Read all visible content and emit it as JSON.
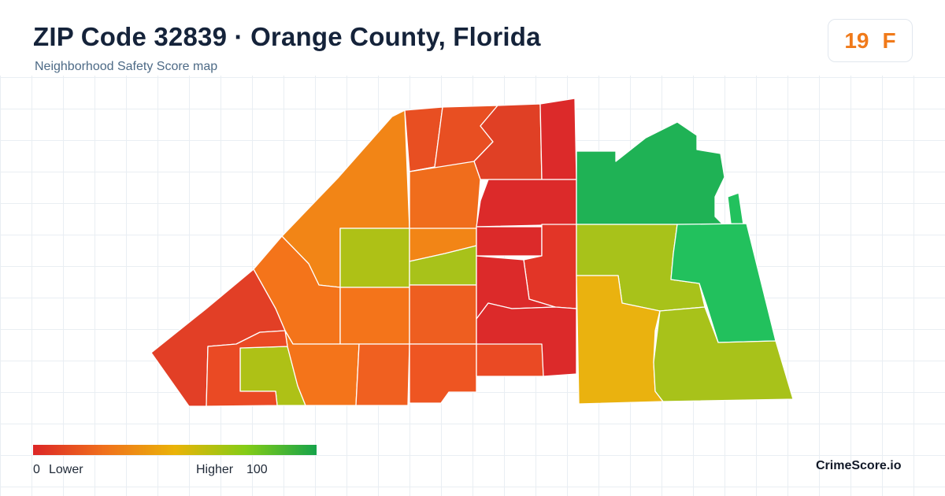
{
  "header": {
    "title": "ZIP Code 32839 · Orange County, Florida",
    "subtitle": "Neighborhood Safety Score map"
  },
  "score_badge": {
    "score": "19",
    "grade": "F"
  },
  "legend": {
    "min_value": "0",
    "min_label": "Lower",
    "max_label": "Higher",
    "max_value": "100",
    "colors": [
      "#dc2626",
      "#f0701c",
      "#eab308",
      "#84cc16",
      "#16a34a"
    ]
  },
  "brand": "CrimeScore.io",
  "map": {
    "regions": [
      {
        "id": "north-west-strip",
        "fill": "#f28516"
      },
      {
        "id": "north-upper-left",
        "fill": "#e84f22"
      },
      {
        "id": "north-upper-center",
        "fill": "#e84f22"
      },
      {
        "id": "north-upper-right",
        "fill": "#e04025"
      },
      {
        "id": "north-east-edge",
        "fill": "#dc2a2a"
      },
      {
        "id": "upper-center-left",
        "fill": "#f06d1c"
      },
      {
        "id": "center-tall-red",
        "fill": "#dc2a2a"
      },
      {
        "id": "north-east-green",
        "fill": "#1fb255"
      },
      {
        "id": "east-sliver",
        "fill": "#22c15d"
      },
      {
        "id": "center-lime-west",
        "fill": "#aec116"
      },
      {
        "id": "center-orange-small",
        "fill": "#f28516"
      },
      {
        "id": "center-lime-east",
        "fill": "#a8c21a"
      },
      {
        "id": "center-red-upper",
        "fill": "#dc2a2a"
      },
      {
        "id": "center-red-right",
        "fill": "#e23527"
      },
      {
        "id": "east-lime",
        "fill": "#a8c21a"
      },
      {
        "id": "east-green",
        "fill": "#22c15d"
      },
      {
        "id": "west-orange-1",
        "fill": "#f4741a"
      },
      {
        "id": "west-red-edge",
        "fill": "#e23f26"
      },
      {
        "id": "center-orange-2",
        "fill": "#f4741a"
      },
      {
        "id": "center-orange-3",
        "fill": "#ee5e20"
      },
      {
        "id": "center-red-mid",
        "fill": "#dc2a2a"
      },
      {
        "id": "center-red-low",
        "fill": "#dc2a2a"
      },
      {
        "id": "south-yellow",
        "fill": "#eab20f"
      },
      {
        "id": "south-east-lime",
        "fill": "#a8c21a"
      },
      {
        "id": "south-west-lime",
        "fill": "#aec116"
      },
      {
        "id": "south-orange-1",
        "fill": "#f4741a"
      },
      {
        "id": "south-orange-2",
        "fill": "#f06020"
      },
      {
        "id": "south-orange-3",
        "fill": "#ee5522"
      },
      {
        "id": "south-red-corner",
        "fill": "#ea4a24"
      },
      {
        "id": "south-red-small",
        "fill": "#ea4a24"
      }
    ]
  }
}
